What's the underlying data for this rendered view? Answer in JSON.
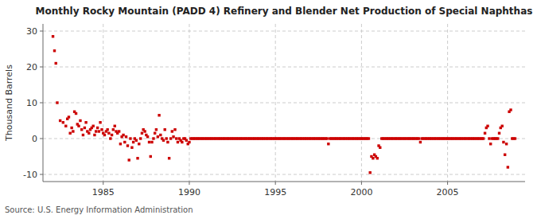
{
  "chart_data": {
    "type": "scatter",
    "title": "Monthly Rocky Mountain (PADD 4) Refinery and Blender Net Production of Special Naphthas",
    "y_label": "Thousand Barrels",
    "source": "Source: U.S. Energy Information Administration",
    "color": "#cc0000",
    "marker": "square",
    "grid": true,
    "xlim": [
      1981.5,
      2009.5
    ],
    "ylim": [
      -12,
      32
    ],
    "xticks": [
      1985,
      1990,
      1995,
      2000,
      2005
    ],
    "yticks": [
      -10,
      0,
      10,
      20,
      30
    ],
    "x": [
      1982.08,
      1982.17,
      1982.25,
      1982.33,
      1982.5,
      1982.67,
      1982.83,
      1982.92,
      1983.0,
      1983.08,
      1983.17,
      1983.25,
      1983.33,
      1983.42,
      1983.5,
      1983.58,
      1983.67,
      1983.75,
      1983.83,
      1983.92,
      1984.0,
      1984.08,
      1984.17,
      1984.25,
      1984.33,
      1984.42,
      1984.5,
      1984.58,
      1984.67,
      1984.75,
      1984.83,
      1984.92,
      1985.0,
      1985.08,
      1985.17,
      1985.25,
      1985.33,
      1985.42,
      1985.5,
      1985.58,
      1985.67,
      1985.75,
      1985.83,
      1985.92,
      1986.0,
      1986.08,
      1986.17,
      1986.25,
      1986.33,
      1986.42,
      1986.5,
      1986.58,
      1986.67,
      1986.75,
      1986.83,
      1986.92,
      1987.0,
      1987.08,
      1987.17,
      1987.25,
      1987.33,
      1987.42,
      1987.5,
      1987.58,
      1987.67,
      1987.75,
      1987.83,
      1987.92,
      1988.0,
      1988.08,
      1988.17,
      1988.25,
      1988.33,
      1988.42,
      1988.5,
      1988.58,
      1988.67,
      1988.75,
      1988.83,
      1988.92,
      1989.0,
      1989.08,
      1989.17,
      1989.25,
      1989.33,
      1989.42,
      1989.5,
      1989.58,
      1989.67,
      1989.75,
      1989.83,
      1989.92,
      1990.0,
      1990.08,
      1990.17,
      1990.25,
      1990.33,
      1990.42,
      1990.5,
      1990.58,
      1990.67,
      1990.75,
      1990.83,
      1990.92,
      1991.0,
      1991.08,
      1991.17,
      1991.25,
      1991.33,
      1991.42,
      1991.5,
      1991.58,
      1991.67,
      1991.75,
      1991.83,
      1991.92,
      1992.0,
      1992.08,
      1992.17,
      1992.25,
      1992.33,
      1992.42,
      1992.5,
      1992.58,
      1992.67,
      1992.75,
      1992.83,
      1992.92,
      1993.0,
      1993.08,
      1993.17,
      1993.25,
      1993.33,
      1993.42,
      1993.5,
      1993.58,
      1993.67,
      1993.75,
      1993.83,
      1993.92,
      1994.0,
      1994.08,
      1994.17,
      1994.25,
      1994.33,
      1994.42,
      1994.5,
      1994.58,
      1994.67,
      1994.75,
      1994.83,
      1994.92,
      1995.0,
      1995.08,
      1995.17,
      1995.25,
      1995.33,
      1995.42,
      1995.5,
      1995.58,
      1995.67,
      1995.75,
      1995.83,
      1995.92,
      1996.0,
      1996.08,
      1996.17,
      1996.25,
      1996.33,
      1996.42,
      1996.5,
      1996.58,
      1996.67,
      1996.75,
      1996.83,
      1996.92,
      1997.0,
      1997.08,
      1997.17,
      1997.25,
      1997.33,
      1997.42,
      1997.5,
      1997.58,
      1997.67,
      1997.75,
      1997.83,
      1997.92,
      1998.0,
      1998.08,
      1998.17,
      1998.25,
      1998.33,
      1998.42,
      1998.5,
      1998.58,
      1998.67,
      1998.75,
      1998.83,
      1998.92,
      1999.0,
      1999.08,
      1999.17,
      1999.25,
      1999.33,
      1999.42,
      1999.5,
      1999.58,
      1999.67,
      1999.75,
      1999.83,
      1999.92,
      2000.0,
      2000.08,
      2000.17,
      2000.25,
      2000.33,
      2000.42,
      2000.5,
      2000.58,
      2000.67,
      2000.75,
      2000.83,
      2000.92,
      2001.0,
      2001.08,
      2001.17,
      2001.25,
      2001.33,
      2001.42,
      2001.5,
      2001.58,
      2001.67,
      2001.75,
      2001.83,
      2001.92,
      2002.0,
      2002.08,
      2002.17,
      2002.25,
      2002.33,
      2002.42,
      2002.5,
      2002.58,
      2002.67,
      2002.75,
      2002.83,
      2002.92,
      2003.0,
      2003.08,
      2003.17,
      2003.25,
      2003.33,
      2003.42,
      2003.5,
      2003.58,
      2003.67,
      2003.75,
      2003.83,
      2003.92,
      2004.0,
      2004.08,
      2004.17,
      2004.25,
      2004.33,
      2004.42,
      2004.5,
      2004.58,
      2004.67,
      2004.75,
      2004.83,
      2004.92,
      2005.0,
      2005.08,
      2005.17,
      2005.25,
      2005.33,
      2005.42,
      2005.5,
      2005.58,
      2005.67,
      2005.75,
      2005.83,
      2005.92,
      2006.0,
      2006.08,
      2006.17,
      2006.25,
      2006.33,
      2006.42,
      2006.5,
      2006.58,
      2006.67,
      2006.75,
      2006.83,
      2006.92,
      2007.0,
      2007.08,
      2007.17,
      2007.25,
      2007.33,
      2007.42,
      2007.5,
      2007.58,
      2007.67,
      2007.75,
      2007.83,
      2007.92,
      2008.0,
      2008.08,
      2008.17,
      2008.25,
      2008.33,
      2008.42,
      2008.5,
      2008.58,
      2008.67,
      2008.75,
      2008.83,
      2008.92
    ],
    "values": [
      28.5,
      24.5,
      21.0,
      10.0,
      5.0,
      4.5,
      3.5,
      5.5,
      6.0,
      1.5,
      3.0,
      2.0,
      7.5,
      7.0,
      4.0,
      3.5,
      5.0,
      2.5,
      1.0,
      3.0,
      4.5,
      2.0,
      1.5,
      2.5,
      3.0,
      3.5,
      1.0,
      2.0,
      3.0,
      2.0,
      4.5,
      2.5,
      1.5,
      1.0,
      2.0,
      2.5,
      1.5,
      0.0,
      1.0,
      2.5,
      3.5,
      2.0,
      1.5,
      2.0,
      -1.5,
      0.5,
      1.0,
      -1.0,
      0.5,
      -2.0,
      -6.0,
      0.0,
      -2.5,
      -1.0,
      0.0,
      -0.5,
      -5.5,
      -1.5,
      0.0,
      1.5,
      2.5,
      2.0,
      1.0,
      0.5,
      -1.0,
      -5.0,
      -1.0,
      0.0,
      1.5,
      2.5,
      0.5,
      6.5,
      1.0,
      0.0,
      -0.5,
      2.5,
      0.0,
      -1.0,
      -5.5,
      0.0,
      2.0,
      0.5,
      2.5,
      0.0,
      -1.0,
      0.0,
      -0.5,
      -1.0,
      0.0,
      0.0,
      -0.5,
      -1.5,
      -1.0,
      0.0,
      0.0,
      0.0,
      0.0,
      0.0,
      0.0,
      0.0,
      0.0,
      0.0,
      0.0,
      0.0,
      0.0,
      0.0,
      0.0,
      0.0,
      0.0,
      0.0,
      0.0,
      0.0,
      0.0,
      0.0,
      0.0,
      0.0,
      0.0,
      0.0,
      0.0,
      0.0,
      0.0,
      0.0,
      0.0,
      0.0,
      0.0,
      0.0,
      0.0,
      0.0,
      0.0,
      0.0,
      0.0,
      0.0,
      0.0,
      0.0,
      0.0,
      0.0,
      0.0,
      0.0,
      0.0,
      0.0,
      0.0,
      0.0,
      0.0,
      0.0,
      0.0,
      0.0,
      0.0,
      0.0,
      0.0,
      0.0,
      0.0,
      0.0,
      0.0,
      0.0,
      0.0,
      0.0,
      0.0,
      0.0,
      0.0,
      0.0,
      0.0,
      0.0,
      0.0,
      0.0,
      0.0,
      0.0,
      0.0,
      0.0,
      0.0,
      0.0,
      0.0,
      0.0,
      0.0,
      0.0,
      0.0,
      0.0,
      0.0,
      0.0,
      0.0,
      0.0,
      0.0,
      0.0,
      0.0,
      0.0,
      0.0,
      0.0,
      0.0,
      0.0,
      0.0,
      -1.5,
      0.0,
      0.0,
      0.0,
      0.0,
      0.0,
      0.0,
      0.0,
      0.0,
      0.0,
      0.0,
      0.0,
      0.0,
      0.0,
      0.0,
      0.0,
      0.0,
      0.0,
      0.0,
      0.0,
      0.0,
      0.0,
      0.0,
      0.0,
      0.0,
      0.0,
      0.0,
      0.0,
      0.0,
      -9.5,
      -5.0,
      -5.5,
      -4.5,
      -5.0,
      -5.5,
      -2.0,
      -2.5,
      0.0,
      0.0,
      0.0,
      0.0,
      0.0,
      0.0,
      0.0,
      0.0,
      0.0,
      0.0,
      0.0,
      0.0,
      0.0,
      0.0,
      0.0,
      0.0,
      0.0,
      0.0,
      0.0,
      0.0,
      0.0,
      0.0,
      0.0,
      0.0,
      0.0,
      0.0,
      0.0,
      -1.0,
      0.0,
      0.0,
      0.0,
      0.0,
      0.0,
      0.0,
      0.0,
      0.0,
      0.0,
      0.0,
      0.0,
      0.0,
      0.0,
      0.0,
      0.0,
      0.0,
      0.0,
      0.0,
      0.0,
      0.0,
      0.0,
      0.0,
      0.0,
      0.0,
      0.0,
      0.0,
      0.0,
      0.0,
      0.0,
      0.0,
      0.0,
      0.0,
      0.0,
      0.0,
      0.0,
      0.0,
      0.0,
      0.0,
      0.0,
      0.0,
      0.0,
      0.0,
      0.0,
      0.0,
      1.5,
      3.0,
      3.5,
      0.0,
      -1.5,
      0.0,
      0.0,
      0.0,
      0.0,
      0.0,
      1.5,
      3.0,
      3.5,
      -1.0,
      -4.5,
      -1.5,
      -8.0,
      7.5,
      8.0,
      0.0,
      0.0,
      0.0
    ]
  }
}
